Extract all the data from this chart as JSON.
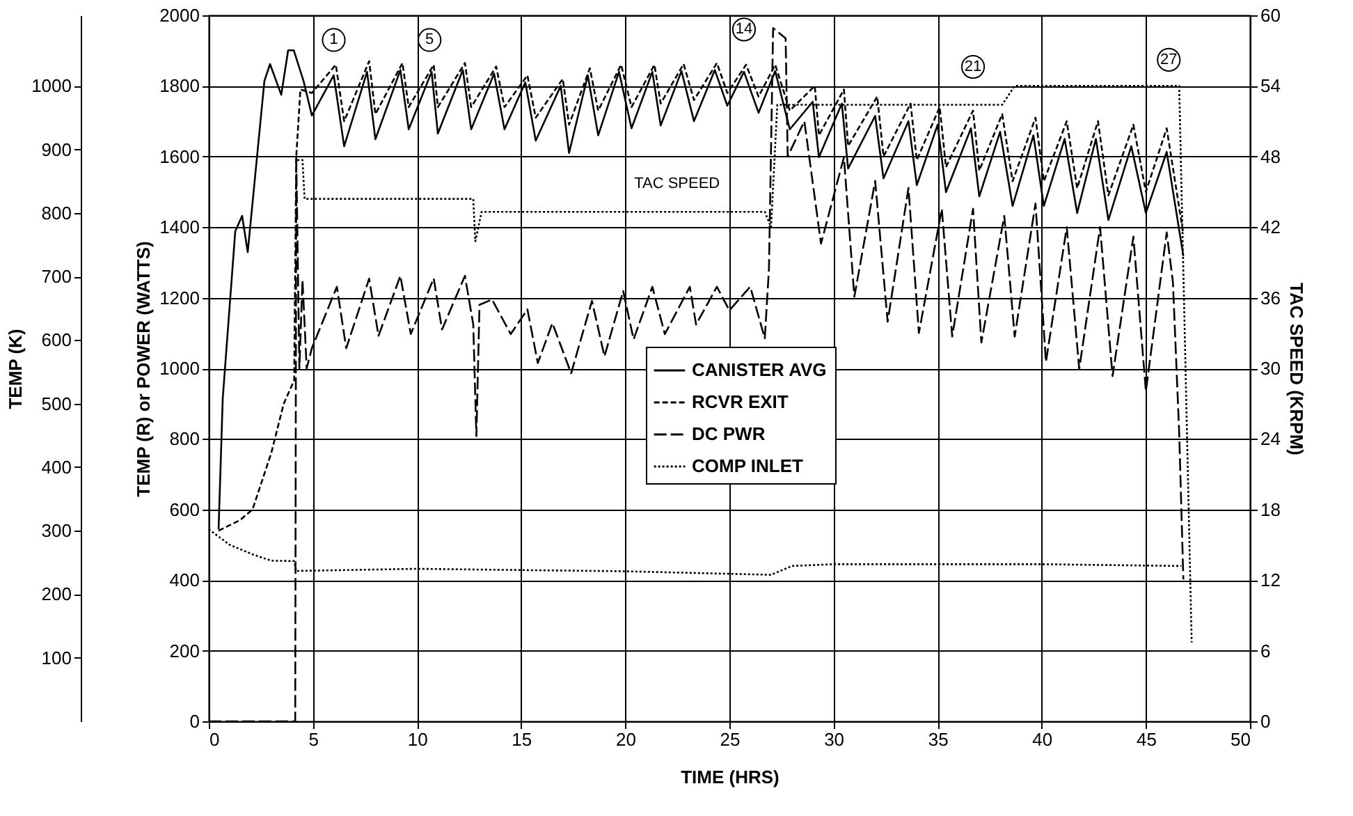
{
  "chart_data": {
    "type": "line",
    "xlabel": "TIME (HRS)",
    "ylabel": "TEMP (R) or POWER (WATTS)",
    "y2label": "TAC SPEED (KRPM)",
    "y3label": "TEMP (K)",
    "xlim": [
      0,
      50
    ],
    "xticks": [
      0,
      5,
      10,
      15,
      20,
      25,
      30,
      35,
      40,
      45,
      50
    ],
    "ylim": [
      0,
      2000
    ],
    "yticks": [
      0,
      200,
      400,
      600,
      800,
      1000,
      1200,
      1400,
      1600,
      1800,
      2000
    ],
    "y2lim": [
      0,
      60
    ],
    "y2ticks": [
      0,
      6,
      12,
      18,
      24,
      30,
      36,
      42,
      48,
      54,
      60
    ],
    "y3lim": [
      0,
      1111.1
    ],
    "y3ticks": [
      100,
      200,
      300,
      400,
      500,
      600,
      700,
      800,
      900,
      1000
    ],
    "grid": true,
    "legend": "bottom",
    "series": [
      {
        "name": "CANISTER AVG",
        "color": "#000000",
        "line_style": "solid",
        "x": [
          0.47,
          0.67,
          1.27,
          1.6,
          1.87,
          2.67,
          2.94,
          3.48,
          3.81,
          4.08,
          4.55,
          4.95,
          6.0,
          6.5,
          7.6,
          8.0,
          9.2,
          9.6,
          10.7,
          11.0,
          12.2,
          12.6,
          13.7,
          14.2,
          15.2,
          15.7,
          16.9,
          17.3,
          18.2,
          18.7,
          19.7,
          20.3,
          21.3,
          21.7,
          22.7,
          23.3,
          24.3,
          24.9,
          25.7,
          26.4,
          27.2,
          27.9,
          29.0,
          29.3,
          30.4,
          30.7,
          32.0,
          32.4,
          33.6,
          34.0,
          35.0,
          35.4,
          36.6,
          37.0,
          38.0,
          38.6,
          39.6,
          40.1,
          41.1,
          41.7,
          42.6,
          43.2,
          44.3,
          45.0,
          46.0,
          46.8
        ],
        "values": [
          544,
          915,
          1388,
          1432,
          1329,
          1814,
          1862,
          1775,
          1901,
          1901,
          1814,
          1716,
          1830,
          1629,
          1840,
          1649,
          1845,
          1677,
          1840,
          1665,
          1845,
          1677,
          1835,
          1677,
          1810,
          1645,
          1800,
          1610,
          1830,
          1660,
          1840,
          1680,
          1840,
          1688,
          1842,
          1700,
          1845,
          1744,
          1840,
          1724,
          1842,
          1677,
          1755,
          1598,
          1750,
          1566,
          1715,
          1538,
          1700,
          1519,
          1690,
          1499,
          1680,
          1487,
          1670,
          1460,
          1660,
          1460,
          1650,
          1440,
          1650,
          1420,
          1629,
          1440,
          1613,
          1318
        ]
      },
      {
        "name": "RCVR EXIT",
        "color": "#000000",
        "line_style": "dashed",
        "x": [
          0.47,
          1.5,
          2.1,
          3.0,
          3.6,
          4.1,
          4.2,
          4.4,
          4.95,
          6.1,
          6.5,
          7.7,
          8.0,
          9.3,
          9.6,
          10.8,
          11.0,
          12.3,
          12.6,
          13.8,
          14.2,
          15.3,
          15.7,
          17.0,
          17.3,
          18.3,
          18.7,
          19.8,
          20.3,
          21.4,
          21.7,
          22.8,
          23.3,
          24.4,
          24.9,
          25.8,
          26.4,
          27.2,
          27.9,
          29.1,
          29.3,
          30.5,
          30.7,
          32.1,
          32.4,
          33.7,
          34.0,
          35.1,
          35.4,
          36.7,
          37.0,
          38.1,
          38.6,
          39.7,
          40.1,
          41.2,
          41.7,
          42.7,
          43.2,
          44.4,
          45.0,
          46.0,
          46.8
        ],
        "values": [
          540,
          570,
          600,
          760,
          900,
          966,
          1600,
          1790,
          1780,
          1860,
          1700,
          1870,
          1720,
          1865,
          1740,
          1860,
          1740,
          1865,
          1740,
          1855,
          1740,
          1830,
          1710,
          1820,
          1690,
          1850,
          1730,
          1860,
          1740,
          1860,
          1750,
          1862,
          1760,
          1865,
          1780,
          1860,
          1770,
          1860,
          1730,
          1800,
          1660,
          1790,
          1630,
          1770,
          1600,
          1750,
          1590,
          1740,
          1570,
          1730,
          1560,
          1720,
          1530,
          1710,
          1530,
          1700,
          1510,
          1700,
          1490,
          1690,
          1500,
          1680,
          1380
        ]
      },
      {
        "name": "DC PWR",
        "color": "#000000",
        "line_style": "dashed",
        "x": [
          0,
          4.15,
          4.2,
          4.35,
          4.5,
          4.7,
          4.95,
          6.15,
          6.6,
          7.7,
          8.15,
          9.2,
          9.7,
          10.8,
          11.2,
          12.3,
          12.7,
          12.85,
          13.0,
          13.6,
          14.5,
          15.3,
          15.8,
          16.5,
          17.4,
          18.4,
          19.0,
          19.9,
          20.4,
          21.3,
          21.9,
          23.1,
          23.4,
          24.4,
          25.0,
          26.0,
          26.7,
          26.9,
          27.1,
          27.7,
          27.8,
          28.6,
          29.4,
          30.5,
          31.0,
          32.0,
          32.6,
          33.6,
          34.1,
          35.2,
          35.7,
          36.7,
          37.1,
          38.2,
          38.7,
          39.7,
          40.2,
          41.2,
          41.8,
          42.8,
          43.4,
          44.4,
          45.0,
          46.0,
          46.3,
          46.6,
          46.8
        ],
        "values": [
          0,
          0,
          1600,
          1000,
          1250,
          1000,
          1057,
          1231,
          1057,
          1254,
          1092,
          1262,
          1097,
          1255,
          1110,
          1262,
          1124,
          808,
          1180,
          1195,
          1097,
          1167,
          1015,
          1128,
          986,
          1191,
          1034,
          1219,
          1082,
          1231,
          1097,
          1231,
          1124,
          1231,
          1164,
          1231,
          1085,
          1282,
          1964,
          1935,
          1600,
          1700,
          1353,
          1598,
          1203,
          1531,
          1132,
          1511,
          1100,
          1452,
          1090,
          1452,
          1073,
          1432,
          1090,
          1467,
          1018,
          1400,
          998,
          1400,
          978,
          1373,
          935,
          1385,
          1243,
          817,
          402
        ]
      },
      {
        "name": "COMP INLET",
        "color": "#000000",
        "line_style": "dotted",
        "x": [
          0,
          1,
          2.1,
          3,
          4.1,
          4.2,
          10,
          20,
          27,
          28,
          30,
          40,
          46.7
        ],
        "values": [
          544,
          500,
          473,
          455,
          454,
          426,
          432,
          425,
          415,
          440,
          445,
          445,
          440
        ]
      },
      {
        "name": "TAC SPEED",
        "color": "#000000",
        "line_style": "dotted",
        "axis": "y2",
        "x": [
          4.25,
          4.5,
          4.6,
          12.7,
          12.8,
          13.1,
          26.7,
          27.0,
          27.3,
          38.1,
          38.7,
          46.6,
          47.2
        ],
        "values": [
          47.7,
          47.7,
          44.4,
          44.4,
          40.8,
          43.3,
          43.3,
          42.0,
          52.4,
          52.4,
          54.0,
          54.0,
          6.7
        ]
      }
    ],
    "annotations": [
      {
        "text": "1",
        "x": 6.0,
        "y": 1930
      },
      {
        "text": "5",
        "x": 10.6,
        "y": 1930
      },
      {
        "text": "14",
        "x": 25.7,
        "y": 1960
      },
      {
        "text": "21",
        "x": 36.7,
        "y": 1854
      },
      {
        "text": "27",
        "x": 46.1,
        "y": 1874
      }
    ]
  }
}
